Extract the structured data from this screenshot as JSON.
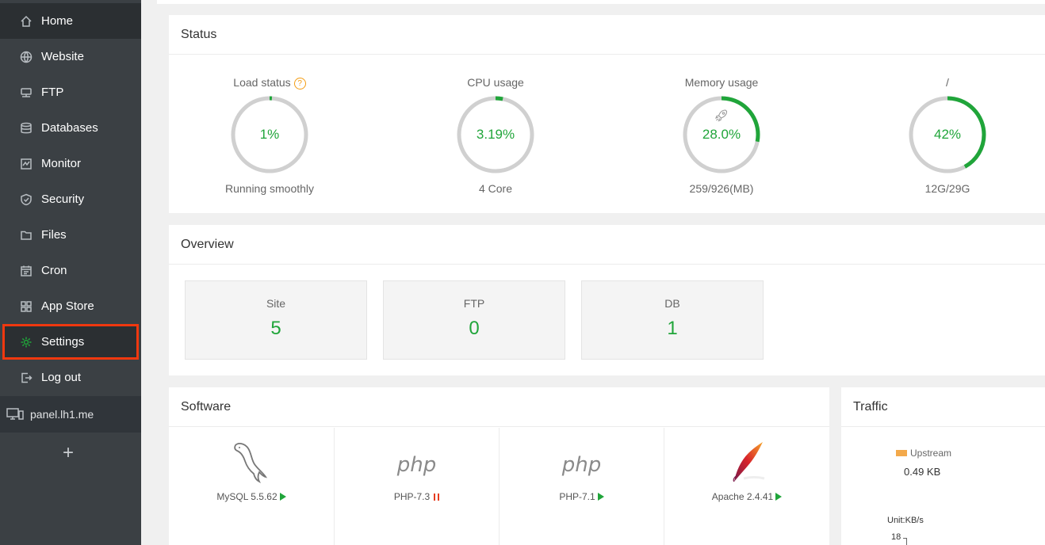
{
  "sidebar": {
    "items": [
      {
        "label": "Home",
        "icon": "home-icon"
      },
      {
        "label": "Website",
        "icon": "globe-icon"
      },
      {
        "label": "FTP",
        "icon": "ftp-icon"
      },
      {
        "label": "Databases",
        "icon": "database-icon"
      },
      {
        "label": "Monitor",
        "icon": "monitor-icon"
      },
      {
        "label": "Security",
        "icon": "shield-icon"
      },
      {
        "label": "Files",
        "icon": "folder-icon"
      },
      {
        "label": "Cron",
        "icon": "calendar-icon"
      },
      {
        "label": "App Store",
        "icon": "grid-icon"
      },
      {
        "label": "Settings",
        "icon": "gear-icon"
      },
      {
        "label": "Log out",
        "icon": "logout-icon"
      }
    ],
    "active": "Home",
    "highlighted": "Settings",
    "host": "panel.lh1.me",
    "add_label": "+"
  },
  "status": {
    "title": "Status",
    "gauges": [
      {
        "title": "Load status",
        "value": "1%",
        "percent": 1,
        "sub": "Running smoothly",
        "has_help": true
      },
      {
        "title": "CPU usage",
        "value": "3.19%",
        "percent": 3.19,
        "sub": "4 Core"
      },
      {
        "title": "Memory usage",
        "value": "28.0%",
        "percent": 28.0,
        "sub": "259/926(MB)",
        "has_rocket": true
      },
      {
        "title": "/",
        "value": "42%",
        "percent": 42,
        "sub": "12G/29G"
      }
    ],
    "help_glyph": "?"
  },
  "overview": {
    "title": "Overview",
    "cards": [
      {
        "label": "Site",
        "value": "5"
      },
      {
        "label": "FTP",
        "value": "0"
      },
      {
        "label": "DB",
        "value": "1"
      }
    ]
  },
  "software": {
    "title": "Software",
    "items": [
      {
        "name": "MySQL 5.5.62",
        "logo": "mysql-dolphin-icon",
        "state": "running"
      },
      {
        "name": "PHP-7.3",
        "logo": "php",
        "state": "stopped"
      },
      {
        "name": "PHP-7.1",
        "logo": "php",
        "state": "running"
      },
      {
        "name": "Apache 2.4.41",
        "logo": "apache-feather-icon",
        "state": "running"
      }
    ]
  },
  "traffic": {
    "title": "Traffic",
    "legend": "Upstream",
    "upstream_value": "0.49 KB",
    "unit": "Unit:KB/s",
    "y_tick": "18"
  },
  "colors": {
    "accent": "#20a53a",
    "sidebar_bg": "#3b4044",
    "highlight_border": "#f0380f",
    "ring_track": "#d0d0d0",
    "upstream": "#f3a94b"
  }
}
